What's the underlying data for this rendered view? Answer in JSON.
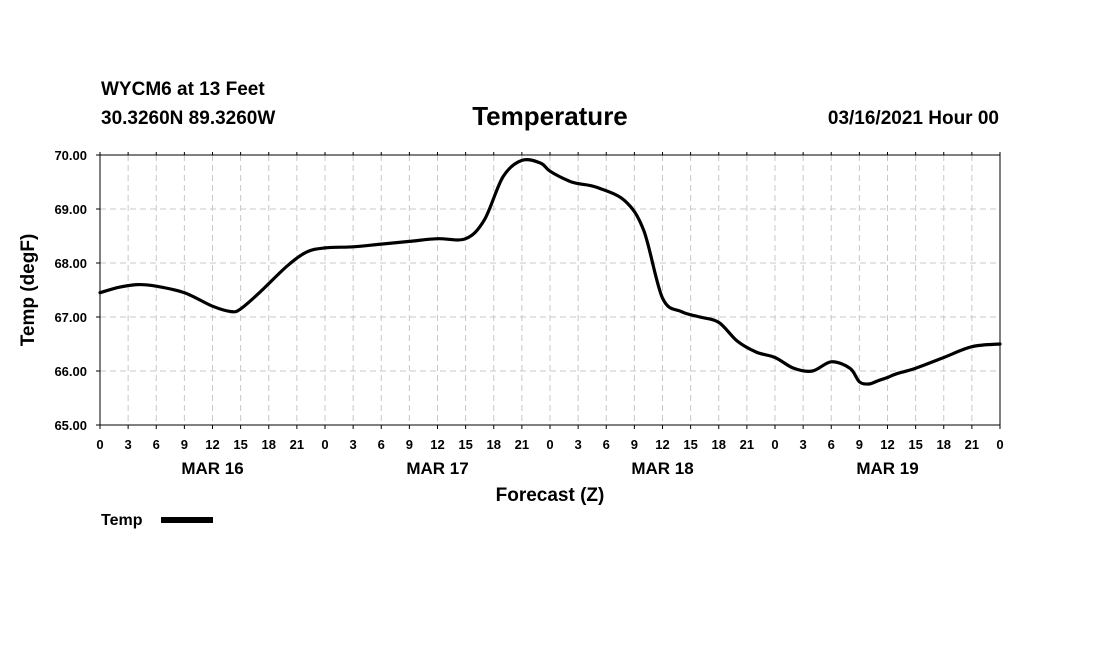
{
  "header": {
    "station": "WYCM6 at 13 Feet",
    "coords": "30.3260N 89.3260W",
    "datetime": "03/16/2021 Hour 00"
  },
  "chart_data": {
    "type": "line",
    "title": "Temperature",
    "xlabel": "Forecast (Z)",
    "ylabel": "Temp (degF)",
    "ylim": [
      65.0,
      70.0
    ],
    "yticks": [
      "65.00",
      "66.00",
      "67.00",
      "68.00",
      "69.00",
      "70.00"
    ],
    "xlim_hours": [
      0,
      96
    ],
    "xtick_labels": [
      "0",
      "3",
      "6",
      "9",
      "12",
      "15",
      "18",
      "21",
      "0",
      "3",
      "6",
      "9",
      "12",
      "15",
      "18",
      "21",
      "0",
      "3",
      "6",
      "9",
      "12",
      "15",
      "18",
      "21",
      "0",
      "3",
      "6",
      "9",
      "12",
      "15",
      "18",
      "21",
      "0"
    ],
    "day_labels": [
      {
        "label": "MAR 16",
        "center_hour": 12
      },
      {
        "label": "MAR 17",
        "center_hour": 36
      },
      {
        "label": "MAR 18",
        "center_hour": 60
      },
      {
        "label": "MAR 19",
        "center_hour": 84
      }
    ],
    "grid": true,
    "legend": "bottom-left",
    "series": [
      {
        "name": "Temp",
        "color": "#000000",
        "x": [
          0,
          2,
          4,
          6,
          9,
          12,
          14,
          15,
          17,
          20,
          22,
          24,
          27,
          30,
          33,
          36,
          39,
          41,
          43,
          45,
          47,
          48,
          50,
          51,
          53,
          56,
          58,
          60,
          62,
          64,
          66,
          68,
          70,
          72,
          74,
          76,
          78,
          80,
          81,
          82,
          83,
          84,
          85,
          87,
          90,
          93,
          96
        ],
        "values": [
          67.45,
          67.55,
          67.6,
          67.57,
          67.45,
          67.2,
          67.1,
          67.15,
          67.45,
          67.95,
          68.2,
          68.28,
          68.3,
          68.35,
          68.4,
          68.45,
          68.45,
          68.8,
          69.6,
          69.9,
          69.85,
          69.7,
          69.52,
          69.47,
          69.4,
          69.15,
          68.6,
          67.35,
          67.1,
          67.0,
          66.9,
          66.55,
          66.35,
          66.25,
          66.05,
          66.0,
          66.17,
          66.05,
          65.8,
          65.76,
          65.82,
          65.88,
          65.95,
          66.05,
          66.25,
          66.45,
          66.5
        ]
      }
    ]
  }
}
